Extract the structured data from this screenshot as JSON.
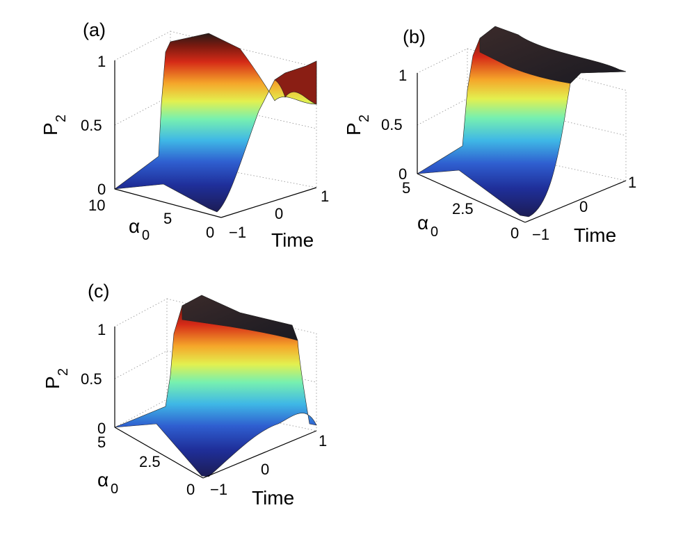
{
  "chart_data": [
    {
      "type": "surface",
      "panel": "(a)",
      "zlabel": "P",
      "zlabel_sub": "2",
      "ylabel": "α",
      "ylabel_sub": "0",
      "xlabel": "Time",
      "x_ticks": [
        "−1",
        "0",
        "1"
      ],
      "y_ticks": [
        "0",
        "5",
        "10"
      ],
      "z_ticks": [
        "0",
        "0.5",
        "1"
      ],
      "xlim": [
        -1,
        1
      ],
      "ylim": [
        0,
        10
      ],
      "zlim": [
        0,
        1
      ],
      "grid": true,
      "colormap": "jet",
      "description_values": {
        "low_alpha_transition": "monotonic rise from 0 to ~1 near Time 0",
        "high_alpha_behavior": "oscillatory, rises to ~1 with spiky ripples",
        "final_P2": 0.95
      }
    },
    {
      "type": "surface",
      "panel": "(b)",
      "zlabel": "P",
      "zlabel_sub": "2",
      "ylabel": "α",
      "ylabel_sub": "0",
      "xlabel": "Time",
      "x_ticks": [
        "−1",
        "0",
        "1"
      ],
      "y_ticks": [
        "0",
        "2.5",
        "5"
      ],
      "z_ticks": [
        "0",
        "0.5",
        "1"
      ],
      "xlim": [
        -1,
        1
      ],
      "ylim": [
        0,
        5
      ],
      "zlim": [
        0,
        1
      ],
      "grid": true,
      "colormap": "jet",
      "description_values": {
        "transition": "smooth step from 0 to 1 centered at Time 0 for all α0",
        "final_P2": 1.0
      }
    },
    {
      "type": "surface",
      "panel": "(c)",
      "zlabel": "P",
      "zlabel_sub": "2",
      "ylabel": "α",
      "ylabel_sub": "0",
      "xlabel": "Time",
      "x_ticks": [
        "−1",
        "0",
        "1"
      ],
      "y_ticks": [
        "0",
        "2.5",
        "5"
      ],
      "z_ticks": [
        "0",
        "0.5",
        "1"
      ],
      "xlim": [
        -1,
        1
      ],
      "ylim": [
        0,
        5
      ],
      "zlim": [
        0,
        1
      ],
      "grid": true,
      "colormap": "jet",
      "description_values": {
        "low_alpha_transition": "small bump, returns near 0",
        "high_alpha_transition": "rises to ~1 near Time 0 and stays",
        "final_P2": 1.0
      }
    }
  ],
  "colors": {
    "jet_low": "#00008f",
    "jet_mid": "#7fff7f",
    "jet_high": "#8f0000",
    "mesh_line": "#000000"
  }
}
